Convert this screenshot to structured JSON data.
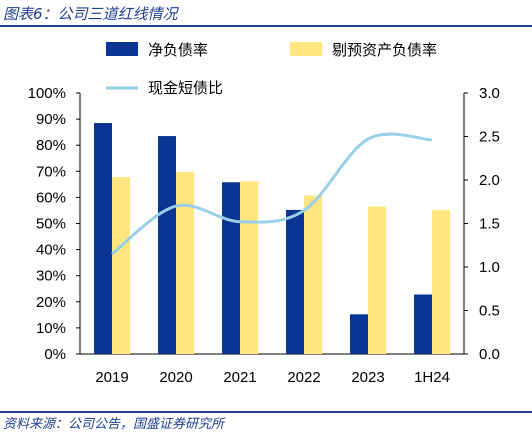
{
  "caption": "图表6：公司三道红线情况",
  "source": "资料来源：公司公告，国盛证券研究所",
  "chart_data": {
    "type": "bar",
    "categories": [
      "2019",
      "2020",
      "2021",
      "2022",
      "2023",
      "1H24"
    ],
    "series": [
      {
        "name": "净负债率",
        "type": "bar",
        "axis": "left",
        "color": "#0a3592",
        "values": [
          0.885,
          0.835,
          0.658,
          0.552,
          0.152,
          0.228
        ]
      },
      {
        "name": "剔预资产负债率",
        "type": "bar",
        "axis": "left",
        "color": "#ffe680",
        "values": [
          0.678,
          0.698,
          0.662,
          0.607,
          0.565,
          0.552
        ]
      },
      {
        "name": "现金短债比",
        "type": "line",
        "axis": "right",
        "color": "#99cfe8",
        "values": [
          1.15,
          1.7,
          1.52,
          1.65,
          2.47,
          2.46
        ]
      }
    ],
    "y_left": {
      "ylim": [
        0,
        1.0
      ],
      "ticks": [
        "0%",
        "10%",
        "20%",
        "30%",
        "40%",
        "50%",
        "60%",
        "70%",
        "80%",
        "90%",
        "100%"
      ]
    },
    "y_right": {
      "ylim": [
        0,
        3.0
      ],
      "ticks": [
        "0.0",
        "0.5",
        "1.0",
        "1.5",
        "2.0",
        "2.5",
        "3.0"
      ]
    },
    "grid": false,
    "legend": "top"
  }
}
